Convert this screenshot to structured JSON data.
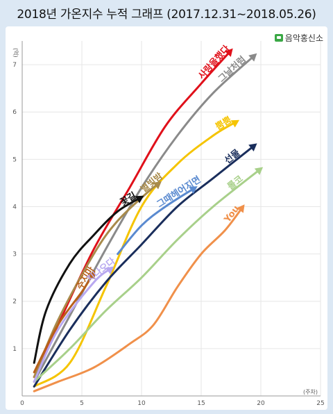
{
  "title": "2018년 가온지수 누적 그래프 (2017.12.31~2018.05.26)",
  "brand": "음악홍신소",
  "chart_data": {
    "type": "line",
    "title": "2018년 가온지수 누적 그래프 (2017.12.31~2018.05.26)",
    "xlabel": "(주차)",
    "ylabel": "(억)",
    "xlim": [
      0,
      25
    ],
    "ylim": [
      0,
      7.5
    ],
    "xticks": [
      0,
      5,
      10,
      15,
      20,
      25
    ],
    "yticks": [
      1,
      2,
      3,
      4,
      5,
      6,
      7
    ],
    "grid": true,
    "series": [
      {
        "name": "사랑을했다",
        "color": "#e0101a",
        "x": [
          1,
          3,
          6,
          9,
          12,
          15,
          17.5
        ],
        "y": [
          0.4,
          1.5,
          3.1,
          4.4,
          5.7,
          6.6,
          7.3
        ]
      },
      {
        "name": "그날처럼",
        "color": "#8a8a8a",
        "x": [
          1,
          4,
          7,
          10,
          13,
          16,
          19.5
        ],
        "y": [
          0.3,
          1.7,
          3.1,
          4.4,
          5.5,
          6.4,
          7.2
        ]
      },
      {
        "name": "뿜뿜",
        "color": "#f5c400",
        "x": [
          1,
          4,
          7,
          10,
          13,
          16,
          18
        ],
        "y": [
          0.2,
          0.7,
          2.3,
          4.0,
          4.9,
          5.5,
          5.8
        ]
      },
      {
        "name": "별빛밤",
        "color": "#a88a4a",
        "x": [
          1,
          3,
          6,
          8,
          10.5,
          11.5
        ],
        "y": [
          0.4,
          1.6,
          3.0,
          3.7,
          4.3,
          4.5
        ]
      },
      {
        "name": "꽃길",
        "color": "#111111",
        "x": [
          1,
          2,
          4,
          6,
          8,
          10
        ],
        "y": [
          0.7,
          1.8,
          2.8,
          3.4,
          3.9,
          4.2
        ]
      },
      {
        "name": "선물",
        "color": "#1a2e5c",
        "x": [
          1,
          4,
          7,
          10,
          13,
          16,
          19.5
        ],
        "y": [
          0.2,
          1.4,
          2.4,
          3.2,
          4.0,
          4.6,
          5.3
        ]
      },
      {
        "name": "그때헤어지면",
        "color": "#5a8ad0",
        "x": [
          8,
          10,
          12,
          14.5
        ],
        "y": [
          3.0,
          3.6,
          4.0,
          4.4
        ]
      },
      {
        "name": "롤코",
        "color": "#a8d08a",
        "x": [
          1,
          4,
          7,
          10,
          13,
          16,
          20
        ],
        "y": [
          0.3,
          1.0,
          1.8,
          2.5,
          3.3,
          4.0,
          4.8
        ]
      },
      {
        "name": "You",
        "color": "#f0904a",
        "x": [
          1,
          3,
          6,
          9,
          11,
          13,
          15,
          17,
          18.5
        ],
        "y": [
          0.1,
          0.3,
          0.6,
          1.1,
          1.5,
          2.3,
          3.0,
          3.5,
          4.0
        ]
      },
      {
        "name": "주지마",
        "color": "#b8601a",
        "x": [
          1,
          3,
          5,
          6
        ],
        "y": [
          0.5,
          1.5,
          2.2,
          2.6
        ]
      },
      {
        "name": "지나오다",
        "color": "#b8a8f0",
        "x": [
          1,
          3,
          6,
          7.5
        ],
        "y": [
          0.3,
          1.4,
          2.4,
          2.7
        ]
      }
    ]
  }
}
